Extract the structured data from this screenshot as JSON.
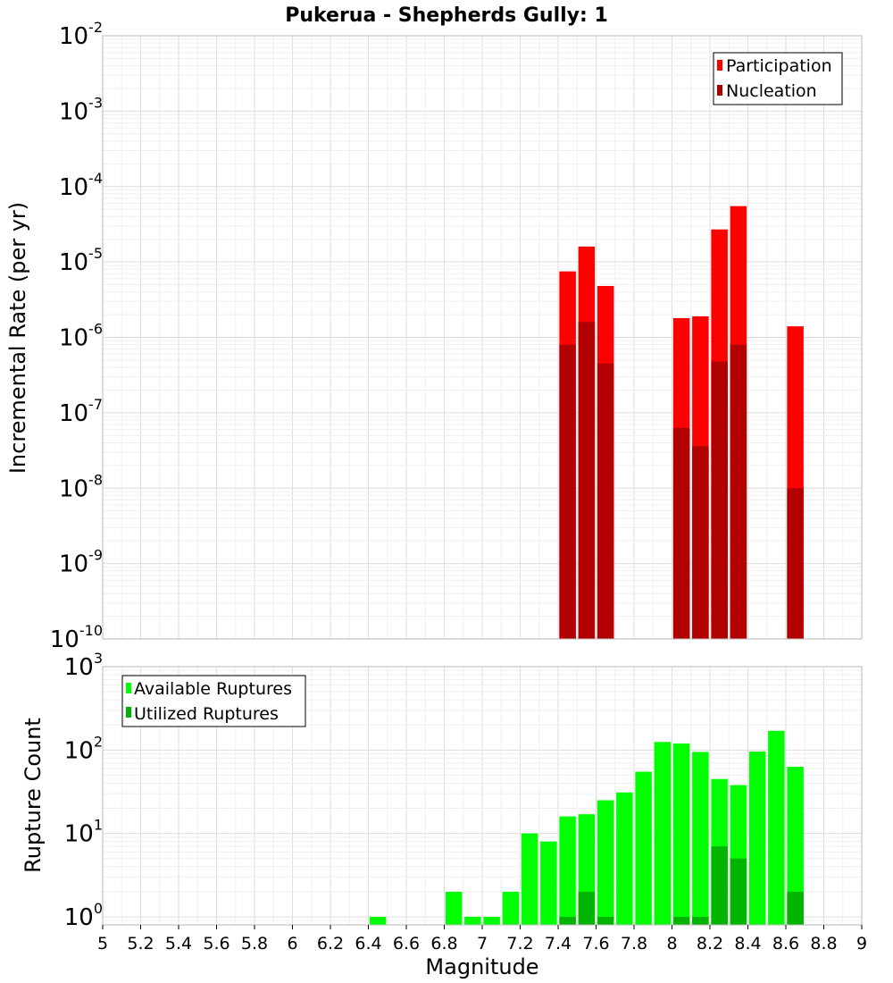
{
  "chart_data": [
    {
      "type": "bar",
      "title": "Pukerua - Shepherds Gully: 1",
      "xlabel": "",
      "ylabel": "Incremental Rate (per yr)",
      "xlim": [
        5,
        9
      ],
      "ylim": [
        1e-10,
        0.01
      ],
      "yscale": "log",
      "grid": true,
      "legend_position": "top-right",
      "y_ticks": [
        {
          "base": "10",
          "exp": "-10"
        },
        {
          "base": "10",
          "exp": "-9"
        },
        {
          "base": "10",
          "exp": "-8"
        },
        {
          "base": "10",
          "exp": "-7"
        },
        {
          "base": "10",
          "exp": "-6"
        },
        {
          "base": "10",
          "exp": "-5"
        },
        {
          "base": "10",
          "exp": "-4"
        },
        {
          "base": "10",
          "exp": "-3"
        },
        {
          "base": "10",
          "exp": "-2"
        }
      ],
      "x": [
        7.45,
        7.55,
        7.65,
        8.05,
        8.15,
        8.25,
        8.35,
        8.65
      ],
      "series": [
        {
          "name": "Participation",
          "color": "#ff0000",
          "values": [
            7.5e-06,
            1.6e-05,
            4.8e-06,
            1.8e-06,
            1.9e-06,
            2.7e-05,
            5.5e-05,
            1.4e-06
          ]
        },
        {
          "name": "Nucleation",
          "color": "#b20000",
          "values": [
            8e-07,
            1.6e-06,
            4.5e-07,
            6.3e-08,
            3.6e-08,
            4.8e-07,
            8e-07,
            1e-08
          ]
        }
      ]
    },
    {
      "type": "bar",
      "title": "",
      "xlabel": "Magnitude",
      "ylabel": "Rupture Count",
      "xlim": [
        5,
        9
      ],
      "ylim": [
        0.8,
        1000
      ],
      "yscale": "log",
      "grid": true,
      "legend_position": "top-left",
      "x_ticks": [
        "5",
        "5.2",
        "5.4",
        "5.6",
        "5.8",
        "6",
        "6.2",
        "6.4",
        "6.6",
        "6.8",
        "7",
        "7.2",
        "7.4",
        "7.6",
        "7.8",
        "8",
        "8.2",
        "8.4",
        "8.6",
        "8.8",
        "9"
      ],
      "y_ticks": [
        {
          "base": "10",
          "exp": "0"
        },
        {
          "base": "10",
          "exp": "1"
        },
        {
          "base": "10",
          "exp": "2"
        },
        {
          "base": "10",
          "exp": "3"
        }
      ],
      "series": [
        {
          "name": "Available Ruptures",
          "color": "#00ff00",
          "x": [
            6.45,
            6.85,
            6.95,
            7.05,
            7.15,
            7.25,
            7.35,
            7.45,
            7.55,
            7.65,
            7.75,
            7.85,
            7.95,
            8.05,
            8.15,
            8.25,
            8.35,
            8.45,
            8.55,
            8.65
          ],
          "values": [
            1,
            2,
            1,
            1,
            2,
            10,
            8,
            16,
            17,
            25,
            31,
            55,
            125,
            120,
            95,
            45,
            38,
            96,
            170,
            63
          ]
        },
        {
          "name": "Utilized Ruptures",
          "color": "#00b400",
          "x": [
            7.45,
            7.55,
            7.65,
            8.05,
            8.15,
            8.25,
            8.35,
            8.65
          ],
          "values": [
            1,
            2,
            1,
            1,
            1,
            7,
            5,
            2
          ]
        }
      ]
    }
  ]
}
